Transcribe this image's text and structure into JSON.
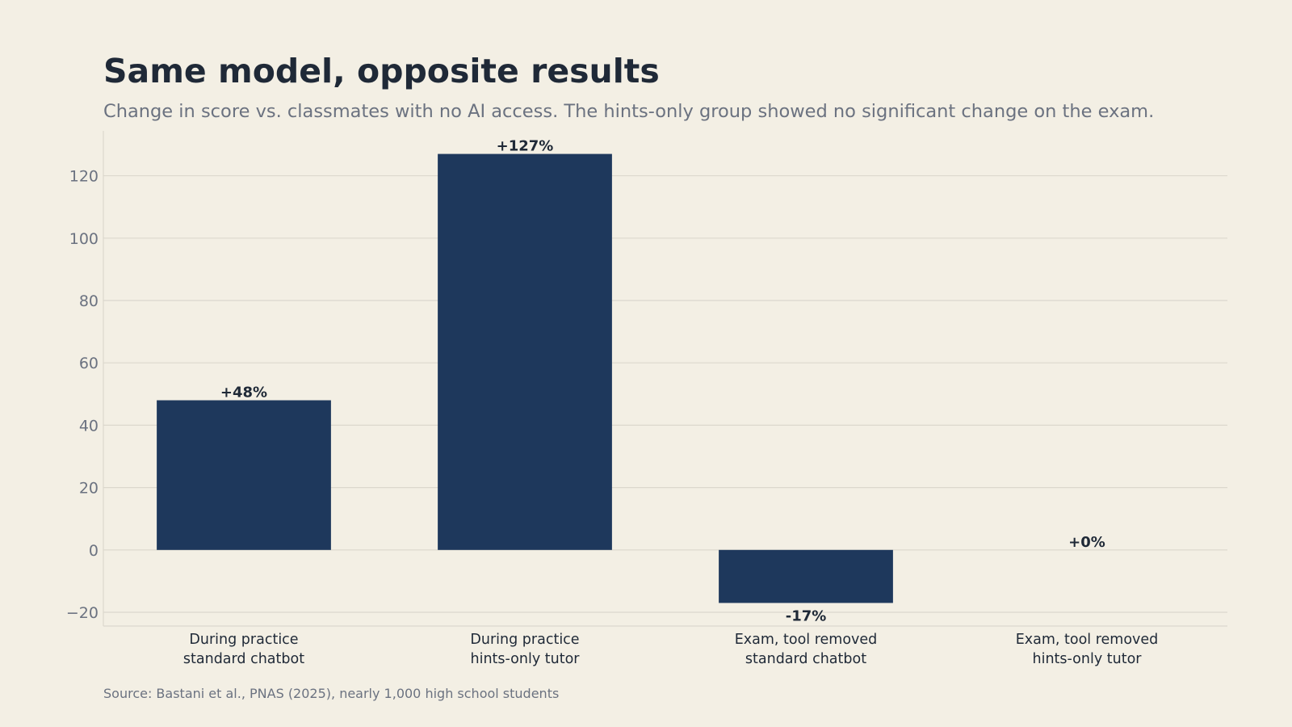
{
  "chart_data": {
    "type": "bar",
    "title": "Same model, opposite results",
    "subtitle": "Change in score vs. classmates with no AI access. The hints-only group showed no significant change on the exam.",
    "source": "Source: Bastani et al., PNAS (2025), nearly 1,000 high school students",
    "categories": [
      [
        "During practice",
        "standard chatbot"
      ],
      [
        "During practice",
        "hints-only tutor"
      ],
      [
        "Exam, tool removed",
        "standard chatbot"
      ],
      [
        "Exam, tool removed",
        "hints-only tutor"
      ]
    ],
    "values": [
      48,
      127,
      -17,
      0
    ],
    "data_labels": [
      "+48%",
      "+127%",
      "-17%",
      "+0%"
    ],
    "xlabel": "",
    "ylabel": "",
    "ylim": [
      -24.4,
      134.4
    ],
    "yticks": [
      -20,
      0,
      20,
      40,
      60,
      80,
      100,
      120
    ],
    "ytick_labels": [
      "−20",
      "0",
      "20",
      "40",
      "60",
      "80",
      "100",
      "120"
    ],
    "grid": true,
    "legend": "none",
    "colors": {
      "bar": "#1e385c",
      "grid": "#dcd8cd",
      "axis": "#dcd8cd",
      "background": "#f3efe4"
    }
  }
}
